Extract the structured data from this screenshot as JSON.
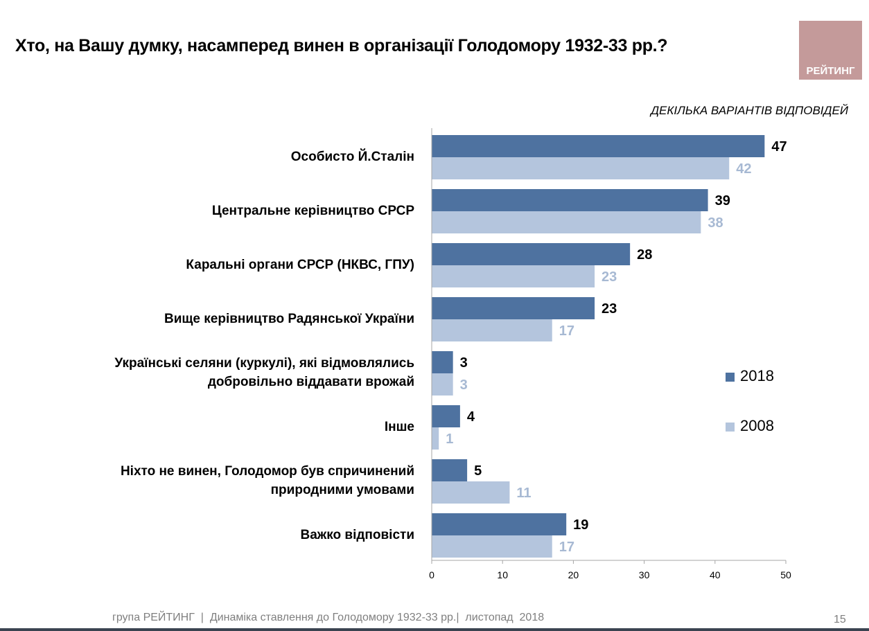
{
  "title": "Хто, на Вашу думку, насамперед винен в організації Голодомору 1932-33 рр.?",
  "logo_text": "РЕЙТИНГ",
  "note": "ДЕКІЛЬКА ВАРІАНТІВ ВІДПОВІДЕЙ",
  "footer": "група РЕЙТИНГ  |  Динаміка ставлення до Голодомору 1932-33 рр.|  листопад  2018",
  "page_number": "15",
  "colors": {
    "series_2018": "#4e72a0",
    "series_2008": "#b4c5dd",
    "label_2008": "#a7b9d3"
  },
  "chart_data": {
    "type": "bar",
    "orientation": "horizontal",
    "categories": [
      "Особисто Й.Сталін",
      "Центральне керівництво СРСР",
      "Каральні органи СРСР (НКВС, ГПУ)",
      "Вище керівництво Радянської України",
      "Українські селяни (куркулі), які відмовлялись добровільно віддавати врожай",
      "Інше",
      "Ніхто не винен, Голодомор був спричинений природними умовами",
      "Важко відповісти"
    ],
    "series": [
      {
        "name": "2018",
        "values": [
          47,
          39,
          28,
          23,
          3,
          4,
          5,
          19
        ]
      },
      {
        "name": "2008",
        "values": [
          42,
          38,
          23,
          17,
          3,
          1,
          11,
          17
        ]
      }
    ],
    "xlim": [
      0,
      50
    ],
    "xticks": [
      "0",
      "10",
      "20",
      "30",
      "40",
      "50"
    ],
    "grid": false,
    "legend_position": "right"
  }
}
